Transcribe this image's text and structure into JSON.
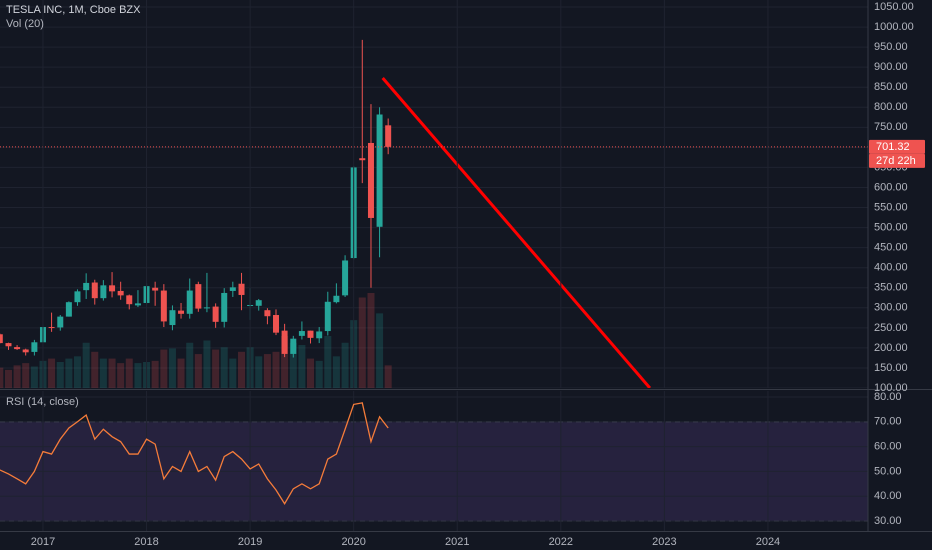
{
  "chart_data": [
    {
      "type": "candlestick",
      "title": "TESLA INC, 1M, Cboe BZX",
      "subtitle": "Vol (20)",
      "x": [
        2016.583,
        2016.667,
        2016.75,
        2016.833,
        2016.917,
        2017,
        2017.083,
        2017.167,
        2017.25,
        2017.333,
        2017.417,
        2017.5,
        2017.583,
        2017.667,
        2017.75,
        2017.833,
        2017.917,
        2018,
        2018.083,
        2018.167,
        2018.25,
        2018.333,
        2018.417,
        2018.5,
        2018.583,
        2018.667,
        2018.75,
        2018.833,
        2018.917,
        2019,
        2019.083,
        2019.167,
        2019.25,
        2019.333,
        2019.417,
        2019.5,
        2019.583,
        2019.667,
        2019.75,
        2019.833,
        2019.917,
        2020,
        2020.083,
        2020.167,
        2020.25,
        2020.333
      ],
      "open": [
        234,
        212,
        202,
        196,
        190,
        214,
        252,
        251,
        278,
        314,
        344,
        363,
        324,
        356,
        342,
        331,
        306,
        312,
        350,
        343,
        257,
        293,
        285,
        359,
        300,
        303,
        265,
        342,
        360,
        306,
        305,
        294,
        282,
        243,
        185,
        230,
        243,
        224,
        242,
        314,
        331,
        424,
        673,
        711,
        502,
        755
      ],
      "high": [
        236,
        213,
        207,
        198,
        220,
        259,
        288,
        282,
        316,
        346,
        386,
        370,
        369,
        389,
        365,
        333,
        344,
        361,
        365,
        359,
        306,
        312,
        373,
        365,
        387,
        311,
        349,
        365,
        387,
        349,
        322,
        299,
        296,
        260,
        230,
        266,
        243,
        252,
        340,
        361,
        431,
        653,
        968,
        808,
        800,
        772
      ],
      "low": [
        211,
        195,
        195,
        181,
        181,
        214,
        240,
        243,
        278,
        305,
        322,
        308,
        318,
        326,
        320,
        296,
        302,
        308,
        305,
        252,
        244,
        273,
        273,
        290,
        289,
        250,
        251,
        327,
        294,
        270,
        293,
        259,
        232,
        177,
        176,
        221,
        211,
        212,
        231,
        311,
        327,
        421,
        611,
        350,
        426,
        683
      ],
      "close": [
        212,
        204,
        197,
        189,
        214,
        252,
        250,
        278,
        314,
        341,
        362,
        324,
        356,
        341,
        331,
        309,
        311,
        354,
        343,
        266,
        294,
        285,
        343,
        298,
        301,
        265,
        337,
        351,
        332,
        307,
        319,
        279,
        238,
        185,
        223,
        242,
        225,
        241,
        315,
        330,
        418,
        650,
        668,
        524,
        782,
        701.32
      ],
      "volume": [
        90,
        80,
        100,
        110,
        95,
        120,
        130,
        115,
        130,
        140,
        200,
        160,
        130,
        130,
        110,
        130,
        110,
        115,
        120,
        170,
        175,
        130,
        200,
        150,
        210,
        170,
        180,
        130,
        160,
        180,
        140,
        150,
        160,
        230,
        200,
        190,
        130,
        120,
        230,
        140,
        200,
        300,
        400,
        420,
        330,
        100
      ],
      "up_color": "#26a69a",
      "down_color": "#ef5350",
      "countdown": "27d 22h",
      "trend_line": {
        "x": [
          2020.28,
          2022.86
        ],
        "y": [
          873,
          100
        ],
        "color": "#ff0000"
      },
      "xlim": [
        2016.585,
        2024.966
      ],
      "ylim": [
        100,
        1067.5
      ],
      "yticks": [
        {
          "value": 100,
          "label": "100.00"
        },
        {
          "value": 150,
          "label": "150.00"
        },
        {
          "value": 200,
          "label": "200.00"
        },
        {
          "value": 250,
          "label": "250.00"
        },
        {
          "value": 300,
          "label": "300.00"
        },
        {
          "value": 350,
          "label": "350.00"
        },
        {
          "value": 400,
          "label": "400.00"
        },
        {
          "value": 450,
          "label": "450.00"
        },
        {
          "value": 500,
          "label": "500.00"
        },
        {
          "value": 550,
          "label": "550.00"
        },
        {
          "value": 600,
          "label": "600.00"
        },
        {
          "value": 650,
          "label": "650.00"
        },
        {
          "value": 700,
          "label": "700.00"
        },
        {
          "value": 750,
          "label": "750.00"
        },
        {
          "value": 800,
          "label": "800.00"
        },
        {
          "value": 850,
          "label": "850.00"
        },
        {
          "value": 900,
          "label": "900.00"
        },
        {
          "value": 950,
          "label": "950.00"
        },
        {
          "value": 1000,
          "label": "1000.00"
        },
        {
          "value": 1050,
          "label": "1050.00"
        }
      ],
      "grid": true
    },
    {
      "type": "line",
      "title": "RSI (14, close)",
      "color": "#f57c3a",
      "band": [
        30,
        70
      ],
      "band_color": "#7e57c2",
      "x": [
        2016.583,
        2016.667,
        2016.75,
        2016.833,
        2016.917,
        2017,
        2017.083,
        2017.167,
        2017.25,
        2017.333,
        2017.417,
        2017.5,
        2017.583,
        2017.667,
        2017.75,
        2017.833,
        2017.917,
        2018,
        2018.083,
        2018.167,
        2018.25,
        2018.333,
        2018.417,
        2018.5,
        2018.583,
        2018.667,
        2018.75,
        2018.833,
        2018.917,
        2019,
        2019.083,
        2019.167,
        2019.25,
        2019.333,
        2019.417,
        2019.5,
        2019.583,
        2019.667,
        2019.75,
        2019.833,
        2019.917,
        2020,
        2020.083,
        2020.167,
        2020.25,
        2020.333
      ],
      "values": [
        50.6,
        49,
        47,
        45,
        50,
        58,
        57,
        63,
        67.5,
        70,
        72.7,
        63,
        67,
        64,
        62,
        57,
        57,
        63,
        61,
        47,
        52,
        50,
        58,
        50,
        52,
        46.5,
        56,
        58,
        55,
        51,
        53,
        47,
        42.5,
        37,
        43,
        45,
        43,
        45,
        55,
        57,
        67,
        77,
        77.6,
        62,
        72,
        67.5
      ],
      "xlim": [
        2016.585,
        2024.966
      ],
      "ylim": [
        26,
        82.4
      ],
      "yticks": [
        {
          "value": 30,
          "label": "30.00"
        },
        {
          "value": 40,
          "label": "40.00"
        },
        {
          "value": 50,
          "label": "50.00"
        },
        {
          "value": 60,
          "label": "60.00"
        },
        {
          "value": 70,
          "label": "70.00"
        },
        {
          "value": 80,
          "label": "80.00"
        }
      ],
      "xticks": [
        2017,
        2018,
        2019,
        2020,
        2021,
        2022,
        2023,
        2024
      ],
      "grid": true
    }
  ]
}
